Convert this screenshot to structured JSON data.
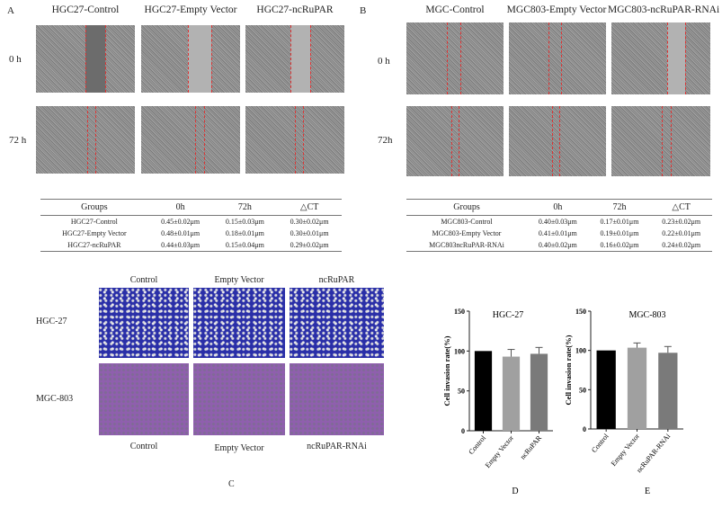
{
  "panel_A": {
    "letter": "A",
    "columns": [
      "HGC27-Control",
      "HGC27-Empty Vector",
      "HGC27-ncRuPAR"
    ],
    "rows": [
      "0 h",
      "72 h"
    ],
    "table": {
      "headers": [
        "Groups",
        "0h",
        "72h",
        "△CT"
      ],
      "rows": [
        [
          "HGC27-Control",
          "0.45±0.02μm",
          "0.15±0.03μm",
          "0.30±0.02μm"
        ],
        [
          "HGC27-Empty Vector",
          "0.48±0.01μm",
          "0.18±0.01μm",
          "0.30±0.01μm"
        ],
        [
          "HGC27-ncRuPAR",
          "0.44±0.03μm",
          "0.15±0.04μm",
          "0.29±0.02μm"
        ]
      ]
    }
  },
  "panel_B": {
    "letter": "B",
    "columns": [
      "MGC-Control",
      "MGC803-Empty Vector",
      "MGC803-ncRuPAR-RNAi"
    ],
    "rows": [
      "0 h",
      "72h"
    ],
    "table": {
      "headers": [
        "Groups",
        "0h",
        "72h",
        "△CT"
      ],
      "rows": [
        [
          "MGC803-Control",
          "0.40±0.03μm",
          "0.17±0.01μm",
          "0.23±0.02μm"
        ],
        [
          "MGC803-Empty Vector",
          "0.41±0.01μm",
          "0.19±0.01μm",
          "0.22±0.01μm"
        ],
        [
          "MGC803ncRuPAR-RNAi",
          "0.40±0.02μm",
          "0.16±0.02μm",
          "0.24±0.02μm"
        ]
      ]
    }
  },
  "panel_C": {
    "letter": "C",
    "top_columns": [
      "Control",
      "Empty Vector",
      "ncRuPAR"
    ],
    "bottom_columns": [
      "Control",
      "Empty Vector",
      "ncRuPAR-RNAi"
    ],
    "rows": [
      "HGC-27",
      "MGC-803"
    ]
  },
  "chart_data": [
    {
      "type": "bar",
      "letter": "D",
      "title": "HGC-27",
      "ylabel": "Cell invasion rate(%)",
      "ylim": [
        0,
        150
      ],
      "yticks": [
        0,
        50,
        100,
        150
      ],
      "categories": [
        "Control",
        "Empty Vector",
        "ncRuPAR"
      ],
      "values": [
        100,
        93,
        96.5
      ],
      "errors": [
        0,
        9,
        8
      ],
      "colors": [
        "#000000",
        "#a0a0a0",
        "#7a7a7a"
      ]
    },
    {
      "type": "bar",
      "letter": "E",
      "title": "MGC-803",
      "ylabel": "Cell invasion rate(%)",
      "ylim": [
        0,
        150
      ],
      "yticks": [
        0,
        50,
        100,
        150
      ],
      "categories": [
        "Control",
        "Empty Vector",
        "ncRuPAR-RNAi"
      ],
      "values": [
        100,
        103.5,
        97
      ],
      "errors": [
        0,
        6,
        8
      ],
      "colors": [
        "#000000",
        "#a0a0a0",
        "#7a7a7a"
      ]
    }
  ]
}
